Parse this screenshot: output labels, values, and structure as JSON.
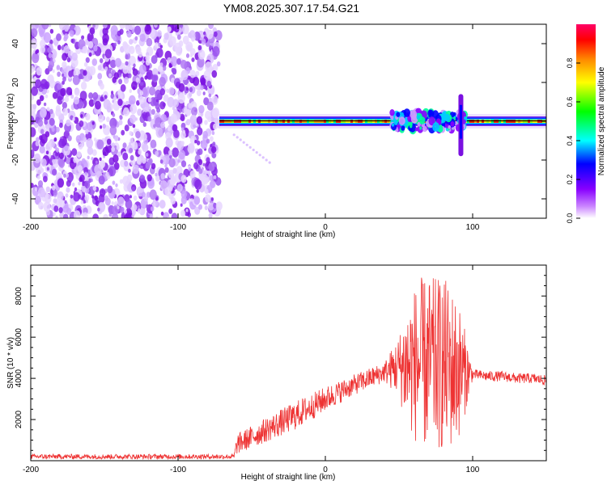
{
  "title": "YM08.2025.307.17.54.G21",
  "chart_data": [
    {
      "type": "heatmap",
      "title": "YM08.2025.307.17.54.G21",
      "xlabel": "Height of straight line (km)",
      "ylabel": "Frequency (Hz)",
      "xlim": [
        -200,
        150
      ],
      "ylim": [
        -50,
        50
      ],
      "xticks": [
        "-200",
        "-100",
        "0",
        "100"
      ],
      "xtick_values": [
        -200,
        -100,
        0,
        100
      ],
      "yticks": [
        "-40",
        "-20",
        "0",
        "20",
        "40"
      ],
      "ytick_values": [
        -40,
        -20,
        0,
        20,
        40
      ],
      "colorbar": {
        "label": "Normalized spectral amplitude",
        "range": [
          0,
          1
        ],
        "ticks": [
          "0.0",
          "0.2",
          "0.4",
          "0.6",
          "0.8"
        ],
        "tick_values": [
          0.0,
          0.2,
          0.4,
          0.6,
          0.8
        ],
        "colors": [
          "#ffffff",
          "#8800ff",
          "#0000ff",
          "#00ffff",
          "#00ff00",
          "#ffff00",
          "#ff8800",
          "#ff0000",
          "#ff0066"
        ]
      },
      "noise_region_x": [
        -200,
        -72
      ],
      "signal_start_x": -72,
      "signal_frequency": 0,
      "disturbance_x": [
        45,
        95
      ],
      "spike_x": 92,
      "spike_freq_range": [
        -18,
        14
      ]
    },
    {
      "type": "line",
      "xlabel": "Height of straight line (km)",
      "ylabel": "SNR (10 * v/v)",
      "xlim": [
        -200,
        150
      ],
      "ylim": [
        0,
        9500
      ],
      "xticks": [
        "-200",
        "-100",
        "0",
        "100"
      ],
      "xtick_values": [
        -200,
        -100,
        0,
        100
      ],
      "yticks": [
        "2000",
        "4000",
        "6000",
        "8000"
      ],
      "ytick_values": [
        2000,
        4000,
        6000,
        8000
      ],
      "series": [
        {
          "name": "SNR",
          "color": "#ee3333",
          "x": [
            -200,
            -150,
            -100,
            -62,
            -60,
            -40,
            -20,
            0,
            20,
            40,
            50,
            55,
            60,
            65,
            70,
            75,
            80,
            85,
            90,
            95,
            100,
            110,
            120,
            130,
            140,
            150
          ],
          "mean": [
            200,
            200,
            200,
            200,
            800,
            1500,
            2200,
            3000,
            3700,
            4300,
            4600,
            4600,
            4700,
            4700,
            4700,
            4700,
            4700,
            4500,
            4400,
            4300,
            4200,
            4100,
            4100,
            4000,
            4000,
            3900
          ],
          "spread": [
            120,
            120,
            120,
            120,
            500,
            600,
            700,
            600,
            500,
            500,
            1500,
            3000,
            3700,
            4200,
            4200,
            4200,
            4300,
            4000,
            3500,
            2000,
            250,
            250,
            250,
            250,
            250,
            250
          ]
        }
      ]
    }
  ]
}
